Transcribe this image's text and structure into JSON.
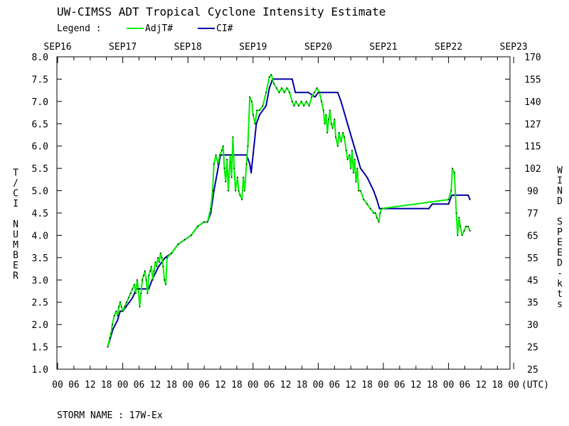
{
  "chart_data": {
    "type": "line",
    "title": "UW-CIMSS ADT Tropical Cyclone Intensity Estimate",
    "legend_label": "Legend :",
    "legend_position": "top-left",
    "ylabel_left": "T/CI NUMBER",
    "ylabel_right": "WIND SPEED-kts",
    "utc_label": "(UTC)",
    "storm_name": "STORM NAME : 17W-Ex",
    "ylim": [
      1.0,
      8.0
    ],
    "xlim_days": [
      0,
      7
    ],
    "date_labels": [
      "SEP16",
      "SEP17",
      "SEP18",
      "SEP19",
      "SEP20",
      "SEP21",
      "SEP22",
      "SEP23"
    ],
    "hour_labels": [
      "00",
      "06",
      "12",
      "18"
    ],
    "y_ticks": [
      "1.0",
      "1.5",
      "2.0",
      "2.5",
      "3.0",
      "3.5",
      "4.0",
      "4.5",
      "5.0",
      "5.5",
      "6.0",
      "6.5",
      "7.0",
      "7.5",
      "8.0"
    ],
    "wind_ticks": [
      "25",
      "25",
      "30",
      "35",
      "45",
      "55",
      "65",
      "77",
      "90",
      "102",
      "115",
      "127",
      "140",
      "155",
      "170"
    ],
    "series": [
      {
        "name": "AdjT#",
        "color": "#00ee00",
        "points": [
          [
            0.77,
            1.5
          ],
          [
            0.8,
            1.7
          ],
          [
            0.82,
            1.8
          ],
          [
            0.84,
            2.0
          ],
          [
            0.87,
            2.2
          ],
          [
            0.9,
            2.3
          ],
          [
            0.92,
            2.2
          ],
          [
            0.94,
            2.4
          ],
          [
            0.96,
            2.5
          ],
          [
            0.98,
            2.4
          ],
          [
            1.0,
            2.3
          ],
          [
            1.03,
            2.4
          ],
          [
            1.06,
            2.5
          ],
          [
            1.09,
            2.6
          ],
          [
            1.12,
            2.7
          ],
          [
            1.15,
            2.8
          ],
          [
            1.18,
            2.9
          ],
          [
            1.2,
            2.7
          ],
          [
            1.22,
            3.0
          ],
          [
            1.24,
            2.8
          ],
          [
            1.26,
            2.4
          ],
          [
            1.28,
            2.7
          ],
          [
            1.3,
            3.0
          ],
          [
            1.32,
            3.1
          ],
          [
            1.34,
            3.2
          ],
          [
            1.36,
            3.0
          ],
          [
            1.38,
            2.7
          ],
          [
            1.4,
            3.1
          ],
          [
            1.42,
            3.2
          ],
          [
            1.44,
            3.3
          ],
          [
            1.46,
            3.0
          ],
          [
            1.48,
            3.2
          ],
          [
            1.5,
            3.4
          ],
          [
            1.52,
            3.3
          ],
          [
            1.54,
            3.5
          ],
          [
            1.56,
            3.4
          ],
          [
            1.58,
            3.6
          ],
          [
            1.6,
            3.5
          ],
          [
            1.62,
            3.3
          ],
          [
            1.64,
            3.0
          ],
          [
            1.66,
            2.9
          ],
          [
            1.68,
            3.5
          ],
          [
            1.75,
            3.6
          ],
          [
            1.85,
            3.8
          ],
          [
            1.95,
            3.9
          ],
          [
            2.05,
            4.0
          ],
          [
            2.15,
            4.2
          ],
          [
            2.25,
            4.3
          ],
          [
            2.3,
            4.3
          ],
          [
            2.35,
            4.6
          ],
          [
            2.38,
            5.0
          ],
          [
            2.4,
            5.6
          ],
          [
            2.43,
            5.8
          ],
          [
            2.46,
            5.6
          ],
          [
            2.49,
            5.8
          ],
          [
            2.52,
            5.9
          ],
          [
            2.54,
            6.0
          ],
          [
            2.56,
            5.5
          ],
          [
            2.58,
            5.2
          ],
          [
            2.6,
            5.7
          ],
          [
            2.62,
            5.0
          ],
          [
            2.65,
            5.8
          ],
          [
            2.67,
            5.3
          ],
          [
            2.69,
            6.2
          ],
          [
            2.71,
            5.5
          ],
          [
            2.73,
            5.0
          ],
          [
            2.76,
            5.3
          ],
          [
            2.78,
            5.0
          ],
          [
            2.8,
            4.9
          ],
          [
            2.83,
            4.8
          ],
          [
            2.85,
            5.3
          ],
          [
            2.87,
            5.0
          ],
          [
            2.9,
            5.6
          ],
          [
            2.92,
            6.0
          ],
          [
            2.95,
            7.1
          ],
          [
            2.98,
            7.0
          ],
          [
            3.0,
            6.7
          ],
          [
            3.03,
            6.5
          ],
          [
            3.06,
            6.8
          ],
          [
            3.1,
            6.8
          ],
          [
            3.15,
            6.9
          ],
          [
            3.2,
            7.2
          ],
          [
            3.25,
            7.55
          ],
          [
            3.28,
            7.6
          ],
          [
            3.32,
            7.4
          ],
          [
            3.36,
            7.3
          ],
          [
            3.4,
            7.2
          ],
          [
            3.44,
            7.3
          ],
          [
            3.48,
            7.2
          ],
          [
            3.52,
            7.3
          ],
          [
            3.56,
            7.2
          ],
          [
            3.6,
            7.0
          ],
          [
            3.63,
            6.9
          ],
          [
            3.66,
            7.0
          ],
          [
            3.7,
            6.9
          ],
          [
            3.74,
            7.0
          ],
          [
            3.78,
            6.9
          ],
          [
            3.82,
            7.0
          ],
          [
            3.86,
            6.9
          ],
          [
            3.9,
            7.1
          ],
          [
            3.94,
            7.2
          ],
          [
            3.98,
            7.3
          ],
          [
            4.02,
            7.2
          ],
          [
            4.05,
            7.0
          ],
          [
            4.08,
            6.8
          ],
          [
            4.1,
            6.5
          ],
          [
            4.12,
            6.7
          ],
          [
            4.14,
            6.3
          ],
          [
            4.16,
            6.6
          ],
          [
            4.18,
            6.8
          ],
          [
            4.2,
            6.5
          ],
          [
            4.22,
            6.4
          ],
          [
            4.25,
            6.6
          ],
          [
            4.27,
            6.2
          ],
          [
            4.3,
            6.0
          ],
          [
            4.32,
            6.3
          ],
          [
            4.35,
            6.1
          ],
          [
            4.38,
            6.3
          ],
          [
            4.4,
            6.2
          ],
          [
            4.43,
            5.9
          ],
          [
            4.45,
            5.7
          ],
          [
            4.48,
            5.8
          ],
          [
            4.5,
            5.5
          ],
          [
            4.52,
            5.9
          ],
          [
            4.54,
            5.4
          ],
          [
            4.56,
            5.7
          ],
          [
            4.58,
            5.2
          ],
          [
            4.6,
            5.5
          ],
          [
            4.62,
            5.0
          ],
          [
            4.65,
            5.0
          ],
          [
            4.7,
            4.8
          ],
          [
            4.75,
            4.7
          ],
          [
            4.8,
            4.6
          ],
          [
            4.85,
            4.5
          ],
          [
            4.88,
            4.5
          ],
          [
            4.9,
            4.4
          ],
          [
            4.93,
            4.3
          ],
          [
            4.95,
            4.5
          ],
          [
            4.97,
            4.6
          ],
          [
            6.0,
            4.8
          ],
          [
            6.04,
            5.0
          ],
          [
            6.06,
            5.5
          ],
          [
            6.09,
            5.4
          ],
          [
            6.12,
            4.5
          ],
          [
            6.14,
            4.0
          ],
          [
            6.16,
            4.4
          ],
          [
            6.18,
            4.2
          ],
          [
            6.21,
            4.0
          ],
          [
            6.24,
            4.1
          ],
          [
            6.27,
            4.2
          ],
          [
            6.3,
            4.2
          ],
          [
            6.33,
            4.1
          ]
        ]
      },
      {
        "name": "CI#",
        "color": "#0000aa",
        "points": [
          [
            0.77,
            1.5
          ],
          [
            0.85,
            1.9
          ],
          [
            0.92,
            2.1
          ],
          [
            0.96,
            2.3
          ],
          [
            1.0,
            2.3
          ],
          [
            1.05,
            2.4
          ],
          [
            1.1,
            2.5
          ],
          [
            1.15,
            2.6
          ],
          [
            1.18,
            2.7
          ],
          [
            1.2,
            2.8
          ],
          [
            1.4,
            2.8
          ],
          [
            1.45,
            3.0
          ],
          [
            1.55,
            3.3
          ],
          [
            1.65,
            3.5
          ],
          [
            1.75,
            3.6
          ],
          [
            1.85,
            3.8
          ],
          [
            1.95,
            3.9
          ],
          [
            2.05,
            4.0
          ],
          [
            2.15,
            4.2
          ],
          [
            2.25,
            4.3
          ],
          [
            2.3,
            4.3
          ],
          [
            2.35,
            4.5
          ],
          [
            2.4,
            5.0
          ],
          [
            2.45,
            5.4
          ],
          [
            2.5,
            5.8
          ],
          [
            2.6,
            5.8
          ],
          [
            2.9,
            5.8
          ],
          [
            2.95,
            5.6
          ],
          [
            2.97,
            5.4
          ],
          [
            3.0,
            5.8
          ],
          [
            3.05,
            6.5
          ],
          [
            3.1,
            6.7
          ],
          [
            3.2,
            6.9
          ],
          [
            3.25,
            7.3
          ],
          [
            3.3,
            7.5
          ],
          [
            3.6,
            7.5
          ],
          [
            3.65,
            7.2
          ],
          [
            3.85,
            7.2
          ],
          [
            3.95,
            7.1
          ],
          [
            4.0,
            7.2
          ],
          [
            4.3,
            7.2
          ],
          [
            4.35,
            7.0
          ],
          [
            4.45,
            6.5
          ],
          [
            4.55,
            6.0
          ],
          [
            4.65,
            5.5
          ],
          [
            4.75,
            5.3
          ],
          [
            4.85,
            5.0
          ],
          [
            4.9,
            4.8
          ],
          [
            4.94,
            4.6
          ],
          [
            5.6,
            4.6
          ],
          [
            5.7,
            4.6
          ],
          [
            5.75,
            4.7
          ],
          [
            6.0,
            4.7
          ],
          [
            6.05,
            4.9
          ],
          [
            6.3,
            4.9
          ],
          [
            6.33,
            4.8
          ]
        ]
      }
    ]
  }
}
